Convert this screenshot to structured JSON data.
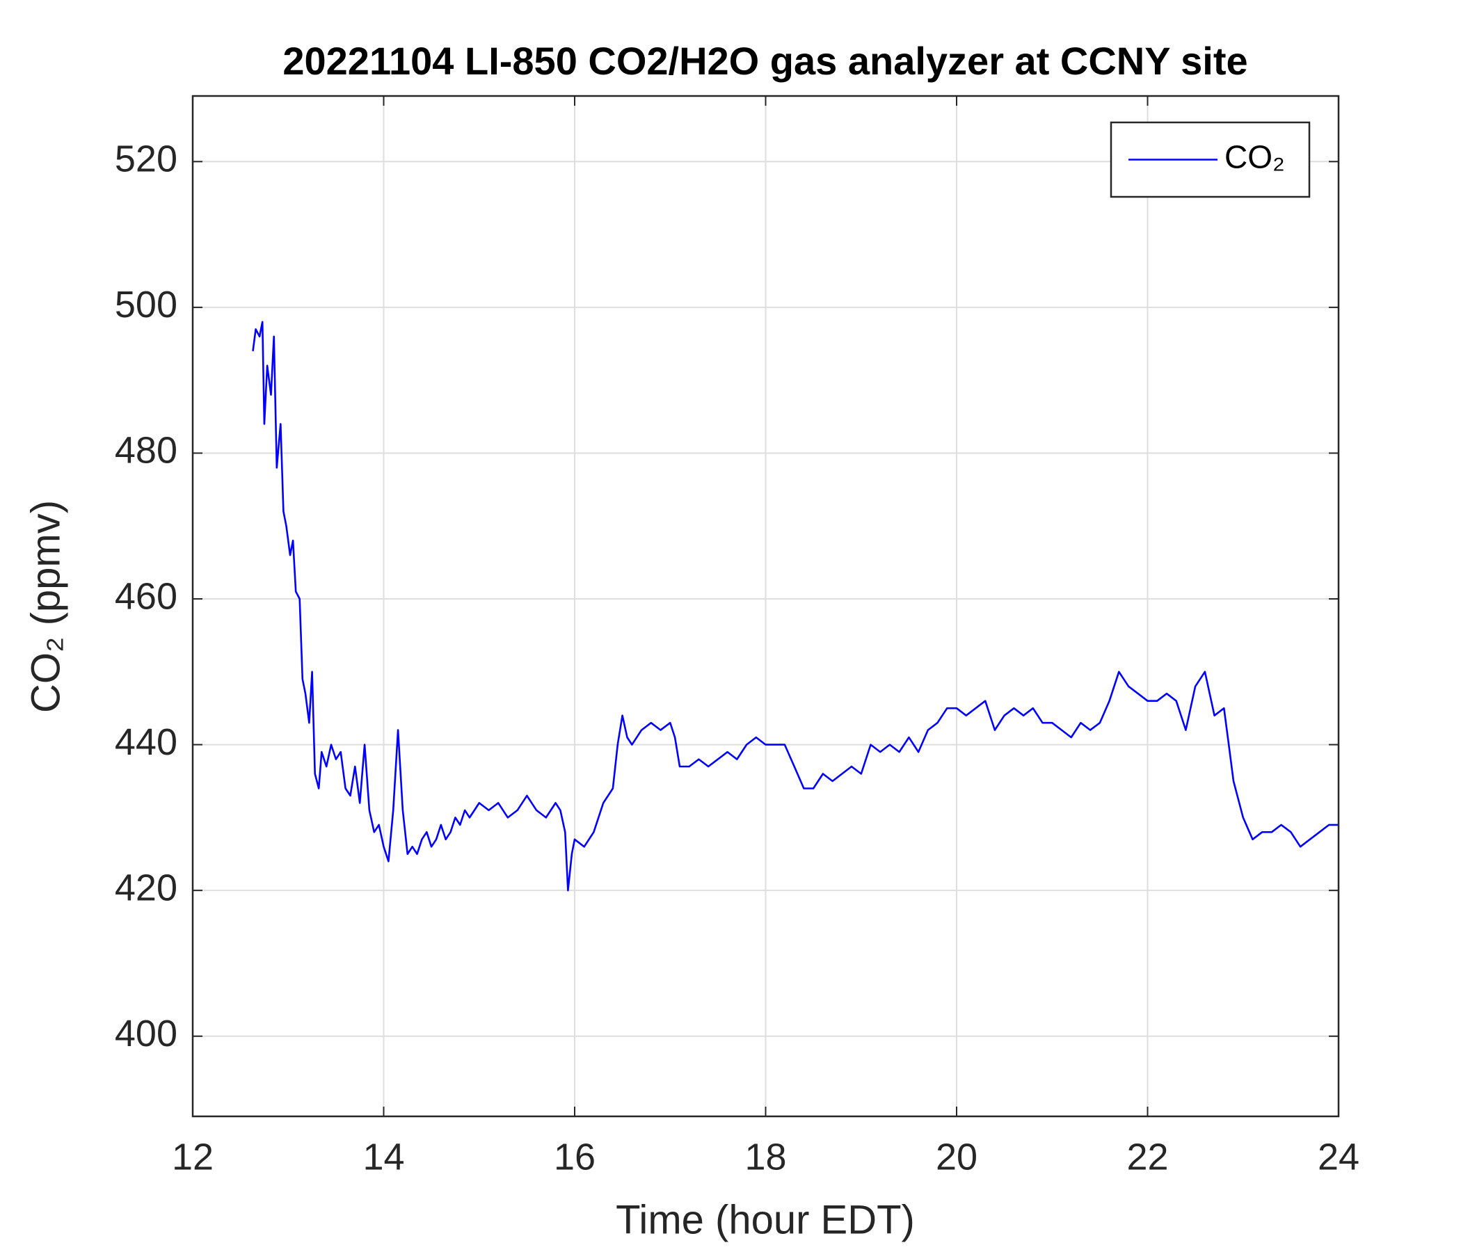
{
  "chart_data": {
    "type": "line",
    "title": "20221104 LI-850 CO2/H2O gas analyzer at CCNY site",
    "x_label": "Time (hour EDT)",
    "y_label": "CO₂ (ppmv)",
    "xlim": [
      12,
      24
    ],
    "xticks": [
      12,
      14,
      16,
      18,
      20,
      22,
      24
    ],
    "ylim": [
      389,
      529
    ],
    "yticks": [
      400,
      420,
      440,
      460,
      480,
      500,
      520
    ],
    "grid": true,
    "legend": "top-right",
    "x": [
      12.63,
      12.66,
      12.7,
      12.73,
      12.75,
      12.78,
      12.82,
      12.85,
      12.88,
      12.92,
      12.95,
      12.98,
      13.02,
      13.05,
      13.08,
      13.12,
      13.15,
      13.18,
      13.22,
      13.25,
      13.28,
      13.32,
      13.35,
      13.4,
      13.45,
      13.5,
      13.55,
      13.6,
      13.65,
      13.7,
      13.75,
      13.8,
      13.85,
      13.9,
      13.95,
      14.0,
      14.05,
      14.1,
      14.15,
      14.2,
      14.25,
      14.3,
      14.35,
      14.4,
      14.45,
      14.5,
      14.55,
      14.6,
      14.65,
      14.7,
      14.75,
      14.8,
      14.85,
      14.9,
      15.0,
      15.1,
      15.2,
      15.3,
      15.4,
      15.5,
      15.6,
      15.7,
      15.8,
      15.85,
      15.9,
      15.93,
      15.97,
      16.0,
      16.1,
      16.2,
      16.3,
      16.4,
      16.45,
      16.5,
      16.55,
      16.6,
      16.7,
      16.8,
      16.9,
      17.0,
      17.05,
      17.1,
      17.2,
      17.3,
      17.4,
      17.5,
      17.6,
      17.7,
      17.8,
      17.9,
      18.0,
      18.1,
      18.2,
      18.3,
      18.4,
      18.5,
      18.6,
      18.7,
      18.8,
      18.9,
      19.0,
      19.1,
      19.2,
      19.3,
      19.4,
      19.5,
      19.6,
      19.7,
      19.8,
      19.9,
      20.0,
      20.1,
      20.2,
      20.3,
      20.4,
      20.5,
      20.6,
      20.7,
      20.8,
      20.9,
      21.0,
      21.1,
      21.2,
      21.3,
      21.4,
      21.5,
      21.6,
      21.7,
      21.8,
      21.9,
      22.0,
      22.1,
      22.2,
      22.3,
      22.4,
      22.5,
      22.6,
      22.7,
      22.8,
      22.85,
      22.9,
      23.0,
      23.1,
      23.2,
      23.3,
      23.4,
      23.5,
      23.6,
      23.7,
      23.8,
      23.9,
      24.0
    ],
    "series": [
      {
        "name": "CO₂",
        "color": "#0000ff",
        "values": [
          494,
          497,
          496,
          498,
          484,
          492,
          488,
          496,
          478,
          484,
          472,
          470,
          466,
          468,
          461,
          460,
          449,
          447,
          443,
          450,
          436,
          434,
          439,
          437,
          440,
          438,
          439,
          434,
          433,
          437,
          432,
          440,
          431,
          428,
          429,
          426,
          424,
          431,
          442,
          431,
          425,
          426,
          425,
          427,
          428,
          426,
          427,
          429,
          427,
          428,
          430,
          429,
          431,
          430,
          432,
          431,
          432,
          430,
          431,
          433,
          431,
          430,
          432,
          431,
          428,
          420,
          425,
          427,
          426,
          428,
          432,
          434,
          440,
          444,
          441,
          440,
          442,
          443,
          442,
          443,
          441,
          437,
          437,
          438,
          437,
          438,
          439,
          438,
          440,
          441,
          440,
          440,
          440,
          437,
          434,
          434,
          436,
          435,
          436,
          437,
          436,
          440,
          439,
          440,
          439,
          441,
          439,
          442,
          443,
          445,
          445,
          444,
          445,
          446,
          442,
          444,
          445,
          444,
          445,
          443,
          443,
          442,
          441,
          443,
          442,
          443,
          446,
          450,
          448,
          447,
          446,
          446,
          447,
          446,
          442,
          448,
          450,
          444,
          445,
          440,
          435,
          430,
          427,
          428,
          428,
          429,
          428,
          426,
          427,
          428,
          429,
          429
        ]
      }
    ]
  }
}
